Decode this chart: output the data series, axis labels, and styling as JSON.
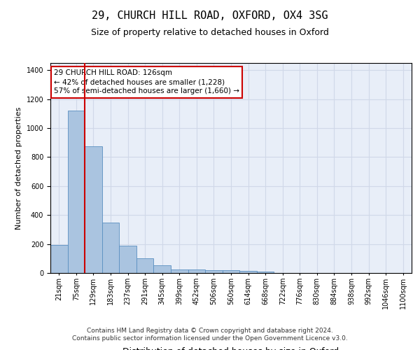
{
  "title": "29, CHURCH HILL ROAD, OXFORD, OX4 3SG",
  "subtitle": "Size of property relative to detached houses in Oxford",
  "xlabel": "Distribution of detached houses by size in Oxford",
  "ylabel": "Number of detached properties",
  "categories": [
    "21sqm",
    "75sqm",
    "129sqm",
    "183sqm",
    "237sqm",
    "291sqm",
    "345sqm",
    "399sqm",
    "452sqm",
    "506sqm",
    "560sqm",
    "614sqm",
    "668sqm",
    "722sqm",
    "776sqm",
    "830sqm",
    "884sqm",
    "938sqm",
    "992sqm",
    "1046sqm",
    "1100sqm"
  ],
  "values": [
    195,
    1120,
    875,
    350,
    190,
    100,
    55,
    25,
    25,
    20,
    20,
    15,
    10,
    0,
    0,
    0,
    0,
    0,
    0,
    0,
    0
  ],
  "bar_color": "#aac4e0",
  "bar_edge_color": "#5a8fc0",
  "annotation_text": "29 CHURCH HILL ROAD: 126sqm\n← 42% of detached houses are smaller (1,228)\n57% of semi-detached houses are larger (1,660) →",
  "annotation_box_color": "#ffffff",
  "annotation_box_edge_color": "#cc0000",
  "vline_color": "#cc0000",
  "vline_x": 1.5,
  "ylim": [
    0,
    1450
  ],
  "yticks": [
    0,
    200,
    400,
    600,
    800,
    1000,
    1200,
    1400
  ],
  "grid_color": "#d0d8e8",
  "bg_color": "#e8eef8",
  "footer_text": "Contains HM Land Registry data © Crown copyright and database right 2024.\nContains public sector information licensed under the Open Government Licence v3.0.",
  "title_fontsize": 11,
  "subtitle_fontsize": 9,
  "xlabel_fontsize": 9,
  "ylabel_fontsize": 8,
  "tick_fontsize": 7,
  "annotation_fontsize": 7.5,
  "footer_fontsize": 6.5
}
